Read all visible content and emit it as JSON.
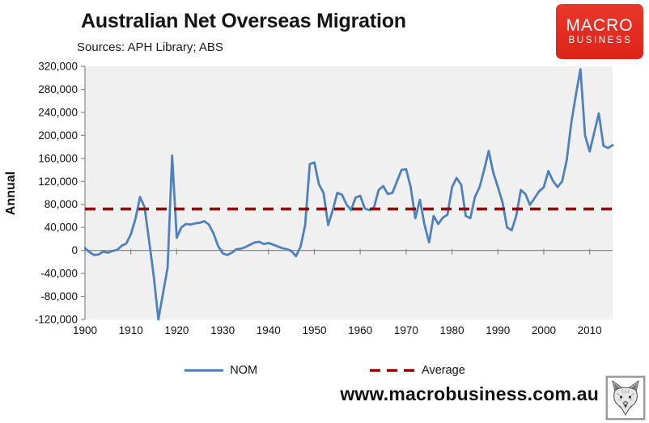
{
  "header": {
    "title": "Australian Net Overseas Migration",
    "sources": "Sources: APH Library; ABS"
  },
  "logo": {
    "line1": "MACRO",
    "line2": "BUSINESS",
    "bg_color": "#dd2318"
  },
  "chart_data": {
    "type": "line",
    "title": "Australian Net Overseas Migration",
    "ylabel": "Annual",
    "xlabel": "",
    "x_range": [
      1900,
      2015
    ],
    "x_step": 1,
    "ylim": [
      -120000,
      320000
    ],
    "y_ticks": [
      320000,
      280000,
      240000,
      200000,
      160000,
      120000,
      80000,
      40000,
      0,
      -40000,
      -80000,
      -120000
    ],
    "x_ticks": [
      1900,
      1910,
      1920,
      1930,
      1940,
      1950,
      1960,
      1970,
      1980,
      1990,
      2000,
      2010
    ],
    "grid": false,
    "legend_position": "bottom",
    "plot_bg": "#f0f0f0",
    "axis_color": "#8a8a8a",
    "tick_label_color": "#111111",
    "series": [
      {
        "name": "NOM",
        "color": "#4f81bd",
        "values": [
          4000,
          -3000,
          -8000,
          -7000,
          -2000,
          -4000,
          -1000,
          1000,
          8000,
          12000,
          28000,
          55000,
          93000,
          75000,
          15000,
          -45000,
          -120000,
          -75000,
          -30000,
          165000,
          22000,
          40000,
          46000,
          45000,
          47000,
          48000,
          51000,
          45000,
          30000,
          8000,
          -5000,
          -8000,
          -4000,
          2000,
          3000,
          6000,
          10000,
          14000,
          15000,
          11000,
          13000,
          10000,
          7000,
          4000,
          2000,
          -1000,
          -10000,
          7000,
          44000,
          150000,
          153000,
          115000,
          100000,
          44000,
          70000,
          100000,
          97000,
          80000,
          70000,
          92000,
          95000,
          73000,
          70000,
          75000,
          105000,
          112000,
          98000,
          100000,
          120000,
          140000,
          141000,
          110000,
          56000,
          88000,
          45000,
          14000,
          60000,
          46000,
          57000,
          62000,
          110000,
          126000,
          114000,
          60000,
          56000,
          93000,
          110000,
          140000,
          173000,
          135000,
          110000,
          84000,
          40000,
          35000,
          60000,
          105000,
          98000,
          79000,
          91000,
          103000,
          110000,
          138000,
          121000,
          110000,
          120000,
          157000,
          222000,
          270000,
          315000,
          200000,
          172000,
          205000,
          238000,
          182000,
          178000,
          183000
        ]
      }
    ],
    "average_line": {
      "name": "Average",
      "value": 72000,
      "color": "#a00000",
      "style": "dashed"
    }
  },
  "legend": {
    "items": [
      {
        "label": "NOM",
        "color": "#4f81bd",
        "style": "solid"
      },
      {
        "label": "Average",
        "color": "#a00000",
        "style": "dashed"
      }
    ]
  },
  "footer": {
    "url": "www.macrobusiness.com.au"
  }
}
